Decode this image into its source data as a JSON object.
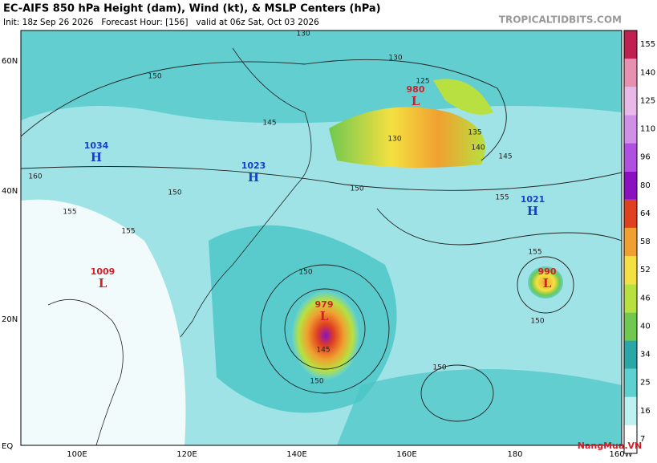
{
  "header": {
    "title": "EC-AIFS 850 hPa Height (dam), Wind (kt), & MSLP Centers (hPa)",
    "subtitle": "Init: 18z Sep 26 2026   Forecast Hour: [156]   valid at 06z Sat, Oct 03 2026",
    "source": "TROPICALTIDBITS.COM"
  },
  "map": {
    "lat_labels": [
      "60N",
      "40N",
      "20N",
      "EQ"
    ],
    "lon_labels": [
      "100E",
      "120E",
      "140E",
      "160E",
      "180",
      "160W"
    ],
    "centers": [
      {
        "letter": "H",
        "pressure": 1034
      },
      {
        "letter": "H",
        "pressure": 1023
      },
      {
        "letter": "L",
        "pressure": 980
      },
      {
        "letter": "H",
        "pressure": 1021
      },
      {
        "letter": "L",
        "pressure": 1009
      },
      {
        "letter": "L",
        "pressure": 979
      },
      {
        "letter": "L",
        "pressure": 990
      }
    ],
    "contour_labels": [
      "130",
      "150",
      "145",
      "130",
      "135",
      "140",
      "145",
      "150",
      "155",
      "160",
      "155",
      "150",
      "155",
      "150",
      "155",
      "150",
      "145",
      "150",
      "150",
      "130",
      "125"
    ],
    "high_color": "#1a3fc8",
    "low_color": "#d0202a"
  },
  "colorbar": {
    "ticks": [
      7,
      16,
      25,
      34,
      40,
      46,
      52,
      58,
      64,
      80,
      96,
      110,
      125,
      140,
      155
    ],
    "colors": [
      "#ffffff",
      "#bdf0f0",
      "#5fd0d0",
      "#2aa8a8",
      "#70c850",
      "#b8e040",
      "#f4e040",
      "#f0a030",
      "#e04020",
      "#8a10c0",
      "#b050e0",
      "#d090e8",
      "#e8b8e8",
      "#e890b0",
      "#c02050"
    ]
  },
  "watermark": "NangMua.VN"
}
